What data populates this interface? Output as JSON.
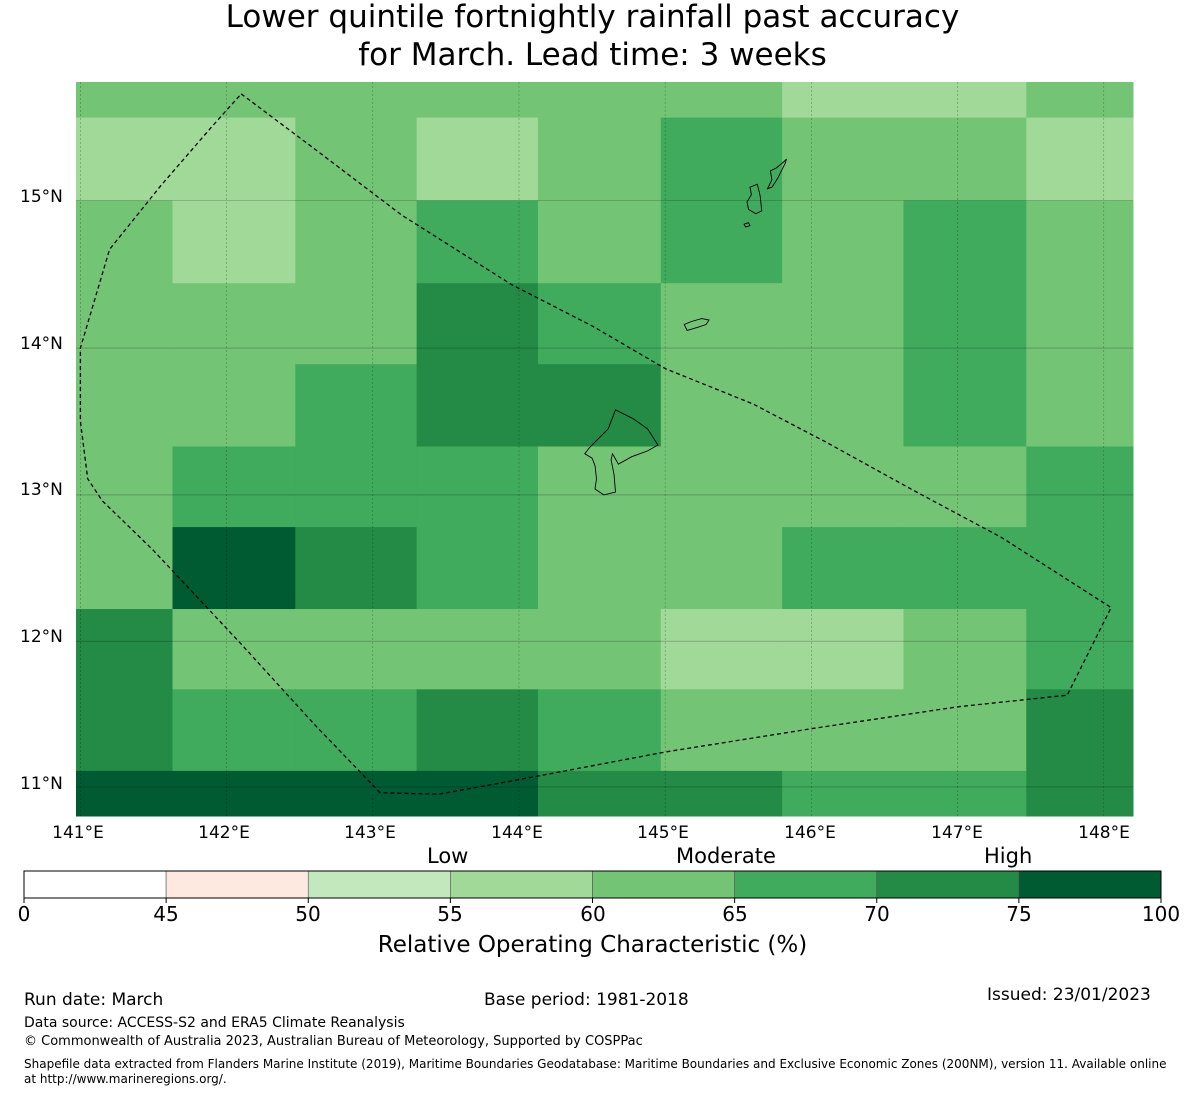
{
  "title": {
    "line1": "Lower quintile fortnightly rainfall past accuracy",
    "line2": "for March. Lead time: 3 weeks"
  },
  "map": {
    "lat_labels": [
      "15°N",
      "14°N",
      "13°N",
      "12°N",
      "11°N"
    ],
    "lon_labels": [
      "141°E",
      "142°E",
      "143°E",
      "144°E",
      "145°E",
      "146°E",
      "147°E",
      "148°E"
    ],
    "extent": {
      "lon_min": 140.97,
      "lon_max": 148.2,
      "lat_min": 10.8,
      "lat_max": 15.8
    },
    "cell_boundaries_lon": [
      140.97,
      141.63,
      142.47,
      143.3,
      144.13,
      144.97,
      145.8,
      146.63,
      147.47,
      148.2
    ],
    "cell_boundaries_lat": [
      15.8,
      15.56,
      15.0,
      14.44,
      13.89,
      13.33,
      12.78,
      12.22,
      11.67,
      11.11,
      10.8
    ],
    "roc_class_grid": [
      [
        4,
        4,
        4,
        4,
        4,
        4,
        3,
        3,
        4
      ],
      [
        3,
        3,
        4,
        3,
        4,
        5,
        4,
        4,
        3
      ],
      [
        4,
        3,
        4,
        5,
        4,
        5,
        4,
        5,
        4
      ],
      [
        4,
        4,
        4,
        6,
        5,
        4,
        4,
        5,
        4
      ],
      [
        4,
        4,
        5,
        6,
        6,
        4,
        4,
        5,
        4
      ],
      [
        4,
        5,
        5,
        5,
        4,
        4,
        4,
        4,
        5
      ],
      [
        4,
        7,
        6,
        5,
        4,
        4,
        5,
        5,
        5
      ],
      [
        6,
        4,
        4,
        4,
        4,
        3,
        3,
        4,
        5
      ],
      [
        6,
        5,
        5,
        6,
        5,
        4,
        4,
        4,
        6
      ],
      [
        7,
        7,
        7,
        7,
        6,
        6,
        5,
        5,
        6
      ]
    ],
    "eez_boundary": [
      [
        142.1,
        15.72
      ],
      [
        142.6,
        15.35
      ],
      [
        143.2,
        14.9
      ],
      [
        143.95,
        14.43
      ],
      [
        144.5,
        14.15
      ],
      [
        145.0,
        13.86
      ],
      [
        145.6,
        13.62
      ],
      [
        146.1,
        13.36
      ],
      [
        146.7,
        13.03
      ],
      [
        147.3,
        12.71
      ],
      [
        148.05,
        12.23
      ],
      [
        147.75,
        11.63
      ],
      [
        147.0,
        11.55
      ],
      [
        146.0,
        11.4
      ],
      [
        145.0,
        11.24
      ],
      [
        144.0,
        11.05
      ],
      [
        143.45,
        10.95
      ],
      [
        143.05,
        10.96
      ],
      [
        142.6,
        11.43
      ],
      [
        142.1,
        11.98
      ],
      [
        141.5,
        12.62
      ],
      [
        141.15,
        12.96
      ],
      [
        141.05,
        13.11
      ],
      [
        141.0,
        13.5
      ],
      [
        141.0,
        14.0
      ],
      [
        141.2,
        14.67
      ],
      [
        141.55,
        15.1
      ],
      [
        141.9,
        15.5
      ],
      [
        142.1,
        15.72
      ]
    ],
    "islands": [
      [
        [
          144.66,
          13.58
        ],
        [
          144.78,
          13.52
        ],
        [
          144.88,
          13.45
        ],
        [
          144.95,
          13.34
        ],
        [
          144.88,
          13.3
        ],
        [
          144.77,
          13.26
        ],
        [
          144.68,
          13.21
        ],
        [
          144.64,
          13.28
        ],
        [
          144.63,
          13.24
        ],
        [
          144.65,
          13.14
        ],
        [
          144.66,
          13.02
        ],
        [
          144.58,
          13.0
        ],
        [
          144.52,
          13.04
        ],
        [
          144.53,
          13.11
        ],
        [
          144.52,
          13.2
        ],
        [
          144.5,
          13.25
        ],
        [
          144.45,
          13.28
        ],
        [
          144.48,
          13.32
        ],
        [
          144.52,
          13.36
        ],
        [
          144.61,
          13.45
        ],
        [
          144.66,
          13.58
        ]
      ],
      [
        [
          145.15,
          14.12
        ],
        [
          145.22,
          14.14
        ],
        [
          145.28,
          14.16
        ],
        [
          145.3,
          14.19
        ],
        [
          145.25,
          14.2
        ],
        [
          145.18,
          14.18
        ],
        [
          145.13,
          14.16
        ],
        [
          145.15,
          14.12
        ]
      ],
      [
        [
          145.72,
          15.2
        ],
        [
          145.76,
          15.22
        ],
        [
          145.81,
          15.26
        ],
        [
          145.83,
          15.28
        ],
        [
          145.82,
          15.25
        ],
        [
          145.77,
          15.15
        ],
        [
          145.73,
          15.09
        ],
        [
          145.7,
          15.08
        ],
        [
          145.73,
          15.14
        ],
        [
          145.72,
          15.2
        ]
      ],
      [
        [
          145.58,
          15.09
        ],
        [
          145.63,
          15.11
        ],
        [
          145.65,
          15.03
        ],
        [
          145.66,
          14.93
        ],
        [
          145.62,
          14.91
        ],
        [
          145.57,
          14.94
        ],
        [
          145.56,
          14.99
        ],
        [
          145.59,
          15.04
        ],
        [
          145.58,
          15.09
        ]
      ],
      [
        [
          145.54,
          14.84
        ],
        [
          145.57,
          14.85
        ],
        [
          145.58,
          14.83
        ],
        [
          145.55,
          14.82
        ],
        [
          145.54,
          14.84
        ]
      ]
    ]
  },
  "colorbar": {
    "category_labels": [
      "Low",
      "Moderate",
      "High"
    ],
    "ticks": [
      "0",
      "45",
      "50",
      "55",
      "60",
      "65",
      "70",
      "75",
      "100"
    ],
    "label": "Relative Operating Characteristic (%)",
    "class_colors": [
      "#ffffff",
      "#fee9e0",
      "#c4e8bd",
      "#a1d998",
      "#74c476",
      "#41ab5d",
      "#238b45",
      "#005a32"
    ]
  },
  "footer": {
    "run_date": "Run date: March",
    "base_period": "Base period: 1981-2018",
    "issued": "Issued: 23/01/2023",
    "data_source": "Data source: ACCESS-S2 and ERA5 Climate Reanalysis",
    "copyright": "© Commonwealth of Australia 2023, Australian Bureau of Meteorology, Supported by COSPPac",
    "shapefile_line1": "Shapefile data extracted from Flanders Marine Institute (2019), Maritime Boundaries Geodatabase: Maritime Boundaries and Exclusive Economic Zones (200NM), version 11. Available online",
    "shapefile_line2": "at http://www.marineregions.org/."
  }
}
